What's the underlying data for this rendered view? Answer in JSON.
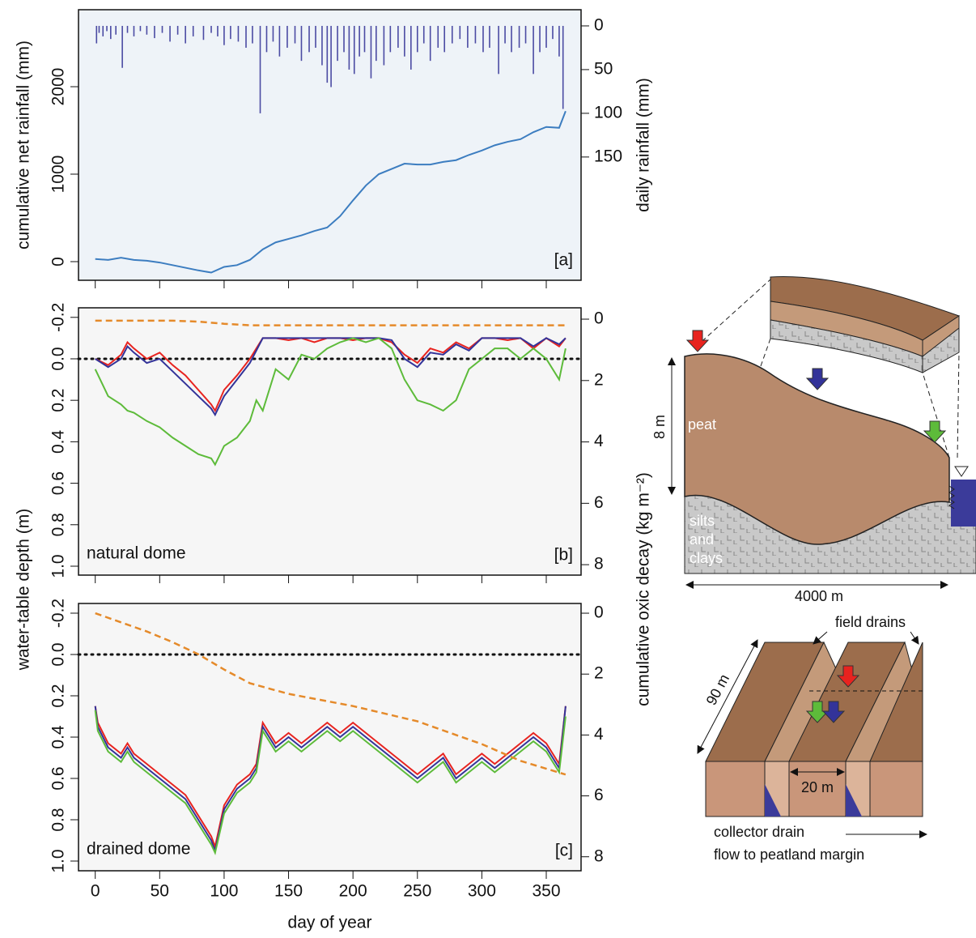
{
  "chart_data": [
    {
      "type": "line",
      "panel_label": "[a]",
      "ylabel": "cumulative net rainfall (mm)",
      "y2label": "daily rainfall (mm)",
      "xlim": [
        -13,
        377
      ],
      "ylim": [
        -213,
        2880
      ],
      "yticks": [
        0,
        1000,
        2000
      ],
      "y2lim": [
        291,
        -18.5
      ],
      "y2ticks": [
        0,
        50,
        100,
        150
      ],
      "background": "#eef3f8",
      "series": [
        {
          "type": "bar",
          "axis": "y2",
          "color": "#4b4ba3",
          "x": [
            1,
            3,
            6,
            9,
            12,
            16,
            21,
            25,
            30,
            35,
            40,
            46,
            52,
            58,
            64,
            70,
            76,
            84,
            90,
            95,
            100,
            105,
            111,
            117,
            122,
            128,
            133,
            138,
            143,
            149,
            155,
            160,
            166,
            171,
            176,
            180,
            183,
            188,
            193,
            197,
            201,
            205,
            209,
            214,
            218,
            224,
            229,
            235,
            240,
            245,
            250,
            255,
            260,
            266,
            271,
            277,
            283,
            289,
            295,
            301,
            306,
            313,
            318,
            323,
            329,
            334,
            340,
            345,
            350,
            355,
            360,
            363
          ],
          "values": [
            20,
            8,
            12,
            6,
            15,
            10,
            48,
            8,
            12,
            6,
            10,
            14,
            8,
            18,
            10,
            20,
            12,
            16,
            8,
            12,
            22,
            15,
            18,
            25,
            20,
            100,
            30,
            18,
            35,
            25,
            20,
            40,
            30,
            25,
            45,
            65,
            70,
            40,
            30,
            50,
            55,
            35,
            30,
            60,
            40,
            45,
            30,
            25,
            35,
            50,
            30,
            20,
            40,
            25,
            30,
            20,
            15,
            25,
            20,
            30,
            25,
            55,
            20,
            30,
            25,
            20,
            55,
            30,
            25,
            15,
            35,
            95
          ]
        },
        {
          "type": "line",
          "color": "#3c7dc0",
          "x": [
            0,
            10,
            20,
            30,
            40,
            50,
            60,
            70,
            80,
            90,
            100,
            110,
            120,
            130,
            140,
            150,
            160,
            170,
            180,
            190,
            200,
            210,
            220,
            230,
            240,
            250,
            260,
            270,
            280,
            290,
            300,
            310,
            320,
            330,
            340,
            350,
            360,
            365
          ],
          "values": [
            30,
            20,
            45,
            20,
            10,
            -10,
            -40,
            -70,
            -100,
            -125,
            -60,
            -40,
            20,
            140,
            220,
            260,
            300,
            350,
            390,
            520,
            700,
            870,
            1000,
            1060,
            1120,
            1110,
            1110,
            1140,
            1160,
            1220,
            1270,
            1330,
            1370,
            1400,
            1480,
            1540,
            1530,
            1720
          ]
        }
      ]
    },
    {
      "type": "line",
      "panel_label": "[b]",
      "annotation": "natural dome",
      "ylabel": "water-table depth (m)",
      "y2label": "cumulative oxic decay (kg m⁻²)",
      "xlim": [
        -13,
        377
      ],
      "ylim": [
        1.043,
        -0.246
      ],
      "yticks": [
        -0.2,
        {
          "value": 0,
          "label": "0.0"
        },
        0.2,
        0.4,
        0.6,
        0.8,
        {
          "value": 1,
          "label": "1.0"
        }
      ],
      "y2lim": [
        8.34,
        -0.37
      ],
      "y2ticks": [
        0,
        2,
        4,
        6,
        8
      ],
      "reference_line": 0,
      "background": "#f6f6f6",
      "x": [
        0,
        10,
        20,
        25,
        30,
        40,
        50,
        60,
        70,
        80,
        90,
        93,
        100,
        110,
        120,
        125,
        130,
        140,
        150,
        160,
        170,
        180,
        190,
        200,
        210,
        220,
        230,
        240,
        250,
        260,
        270,
        280,
        290,
        300,
        310,
        320,
        330,
        340,
        350,
        360,
        365
      ],
      "series": [
        {
          "color": "#e8231f",
          "values": [
            0,
            0.03,
            -0.02,
            -0.08,
            -0.05,
            0,
            -0.03,
            0.03,
            0.08,
            0.15,
            0.22,
            0.25,
            0.15,
            0.08,
            0,
            -0.05,
            -0.1,
            -0.1,
            -0.09,
            -0.1,
            -0.08,
            -0.1,
            -0.1,
            -0.09,
            -0.1,
            -0.1,
            -0.08,
            -0.02,
            0.02,
            -0.05,
            -0.03,
            -0.08,
            -0.05,
            -0.1,
            -0.1,
            -0.09,
            -0.1,
            -0.05,
            -0.1,
            -0.06,
            -0.1
          ]
        },
        {
          "color": "#333399",
          "values": [
            0,
            0.04,
            0,
            -0.06,
            -0.03,
            0.02,
            0,
            0.06,
            0.12,
            0.18,
            0.24,
            0.27,
            0.18,
            0.1,
            0.02,
            -0.04,
            -0.1,
            -0.1,
            -0.1,
            -0.1,
            -0.1,
            -0.1,
            -0.1,
            -0.1,
            -0.1,
            -0.1,
            -0.09,
            0,
            0.04,
            -0.03,
            -0.02,
            -0.07,
            -0.04,
            -0.1,
            -0.1,
            -0.1,
            -0.1,
            -0.06,
            -0.1,
            -0.07,
            -0.1
          ]
        },
        {
          "color": "#5dbb3a",
          "values": [
            0.05,
            0.18,
            0.22,
            0.25,
            0.26,
            0.3,
            0.33,
            0.38,
            0.42,
            0.46,
            0.48,
            0.51,
            0.42,
            0.38,
            0.3,
            0.2,
            0.25,
            0.05,
            0.1,
            -0.02,
            0,
            -0.05,
            -0.08,
            -0.1,
            -0.08,
            -0.1,
            -0.05,
            0.1,
            0.2,
            0.22,
            0.25,
            0.2,
            0.05,
            0,
            -0.05,
            -0.05,
            0,
            -0.05,
            0,
            0.1,
            -0.05
          ]
        },
        {
          "color": "#e58a2a",
          "axis": "y2",
          "linestyle": "dashed",
          "x": [
            0,
            60,
            80,
            100,
            120,
            365
          ],
          "values": [
            0.05,
            0.05,
            0.08,
            0.15,
            0.2,
            0.2
          ]
        }
      ]
    },
    {
      "type": "line",
      "panel_label": "[c]",
      "annotation": "drained dome",
      "xlabel": "day of year",
      "xlim": [
        -13,
        377
      ],
      "xticks": [
        0,
        50,
        100,
        150,
        200,
        250,
        300,
        350
      ],
      "ylim": [
        1.047,
        -0.247
      ],
      "yticks": [
        -0.2,
        {
          "value": 0,
          "label": "0.0"
        },
        0.2,
        0.4,
        0.6,
        0.8,
        {
          "value": 1,
          "label": "1.0"
        }
      ],
      "y2lim": [
        8.46,
        -0.32
      ],
      "y2ticks": [
        0,
        2,
        4,
        6,
        8
      ],
      "reference_line": 0,
      "background": "#f6f6f6",
      "x": [
        0,
        2,
        10,
        20,
        25,
        30,
        40,
        50,
        60,
        70,
        80,
        85,
        90,
        93,
        100,
        110,
        120,
        125,
        130,
        140,
        150,
        160,
        170,
        180,
        190,
        200,
        210,
        220,
        230,
        240,
        250,
        260,
        270,
        280,
        290,
        300,
        310,
        320,
        330,
        340,
        350,
        360,
        365
      ],
      "series": [
        {
          "color": "#e8231f",
          "values": [
            0.25,
            0.33,
            0.43,
            0.48,
            0.43,
            0.48,
            0.53,
            0.58,
            0.63,
            0.68,
            0.78,
            0.83,
            0.88,
            0.93,
            0.73,
            0.63,
            0.58,
            0.53,
            0.33,
            0.43,
            0.38,
            0.43,
            0.38,
            0.33,
            0.38,
            0.33,
            0.38,
            0.43,
            0.48,
            0.53,
            0.58,
            0.53,
            0.48,
            0.58,
            0.53,
            0.48,
            0.53,
            0.48,
            0.43,
            0.38,
            0.43,
            0.53,
            0.25
          ]
        },
        {
          "color": "#333399",
          "values": [
            0.25,
            0.35,
            0.45,
            0.5,
            0.45,
            0.5,
            0.55,
            0.6,
            0.65,
            0.7,
            0.8,
            0.85,
            0.9,
            0.95,
            0.75,
            0.65,
            0.6,
            0.55,
            0.35,
            0.45,
            0.4,
            0.45,
            0.4,
            0.35,
            0.4,
            0.35,
            0.4,
            0.45,
            0.5,
            0.55,
            0.6,
            0.55,
            0.5,
            0.6,
            0.55,
            0.5,
            0.55,
            0.5,
            0.45,
            0.4,
            0.45,
            0.55,
            0.25
          ]
        },
        {
          "color": "#5dbb3a",
          "values": [
            0.27,
            0.37,
            0.47,
            0.52,
            0.47,
            0.52,
            0.57,
            0.62,
            0.67,
            0.72,
            0.82,
            0.87,
            0.92,
            0.96,
            0.77,
            0.67,
            0.62,
            0.57,
            0.37,
            0.47,
            0.42,
            0.47,
            0.42,
            0.37,
            0.42,
            0.37,
            0.42,
            0.47,
            0.52,
            0.57,
            0.62,
            0.57,
            0.52,
            0.62,
            0.57,
            0.52,
            0.57,
            0.52,
            0.47,
            0.42,
            0.47,
            0.57,
            0.3
          ]
        },
        {
          "color": "#e58a2a",
          "axis": "y2",
          "linestyle": "dashed",
          "x": [
            0,
            20,
            40,
            60,
            80,
            100,
            120,
            150,
            200,
            250,
            300,
            330,
            365
          ],
          "values": [
            0,
            0.3,
            0.6,
            0.95,
            1.35,
            1.85,
            2.3,
            2.65,
            3.05,
            3.55,
            4.3,
            4.85,
            5.3
          ]
        }
      ]
    }
  ],
  "diagram": {
    "cross_section": {
      "peat": "peat",
      "height": "8 m",
      "substrate": [
        "silts",
        "and",
        "clays"
      ],
      "width": "4000 m"
    },
    "field_drains": {
      "drains": "field drains",
      "length": "90 m",
      "spacing": "20 m",
      "collector": "collector drain",
      "flow": "flow to peatland margin"
    }
  }
}
